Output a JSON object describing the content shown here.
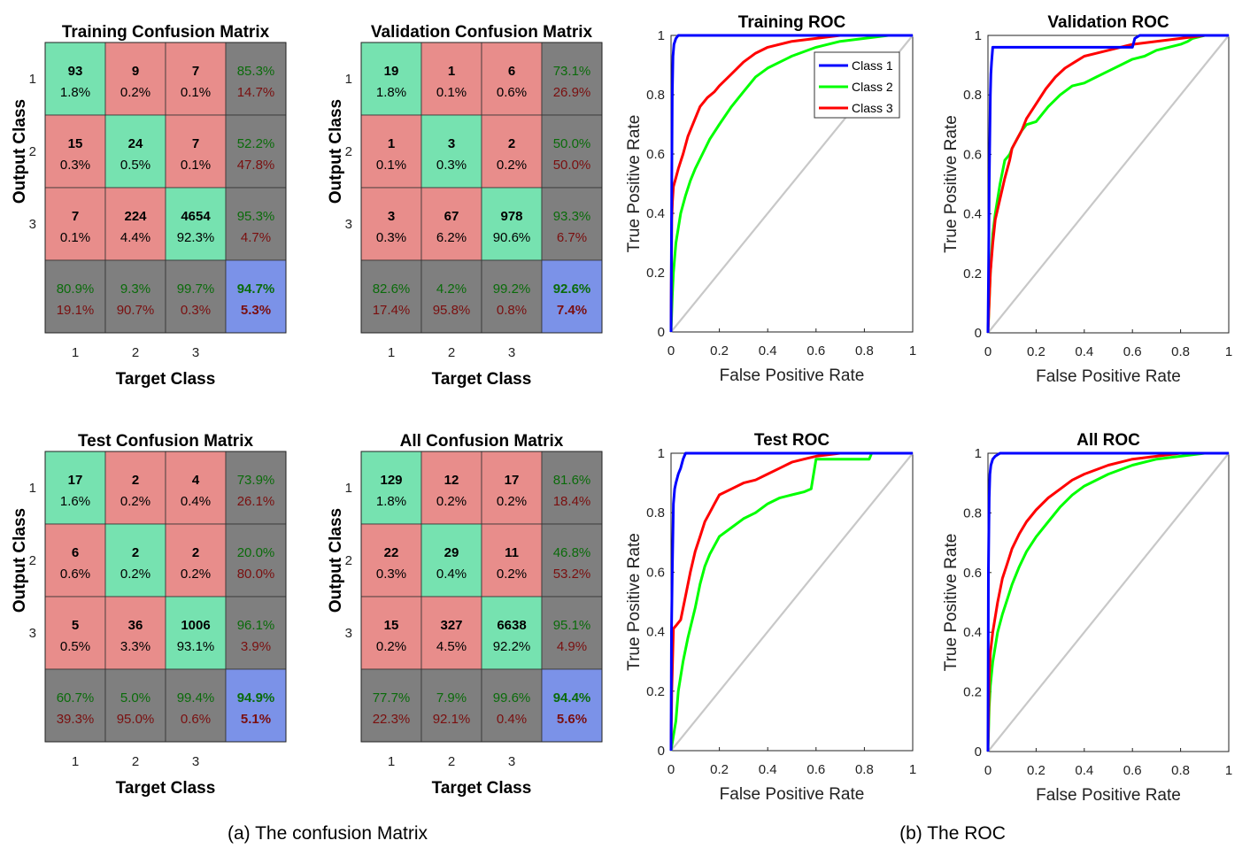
{
  "captions": {
    "left": "(a) The confusion Matrix",
    "right": "(b) The ROC"
  },
  "colors": {
    "correct": "#76e2b0",
    "wrong": "#e88d8b",
    "summary": "#7f7f7f",
    "overall": "#7b92e8",
    "green_text": "#0a6b0a",
    "red_text": "#7a0f0f",
    "class1": "#0000ff",
    "class2": "#00ff00",
    "class3": "#ff0000",
    "chance": "#c8c8c8"
  },
  "chart_data": [
    {
      "type": "table",
      "title": "Training Confusion Matrix",
      "xlabel": "Target Class",
      "ylabel": "Output Class",
      "class_labels": [
        "1",
        "2",
        "3"
      ],
      "counts": [
        [
          93,
          9,
          7
        ],
        [
          15,
          24,
          7
        ],
        [
          7,
          224,
          4654
        ]
      ],
      "cell_pct": [
        [
          "1.8%",
          "0.2%",
          "0.1%"
        ],
        [
          "0.3%",
          "0.5%",
          "0.1%"
        ],
        [
          "0.1%",
          "4.4%",
          "92.3%"
        ]
      ],
      "row_summary": [
        [
          "85.3%",
          "14.7%"
        ],
        [
          "52.2%",
          "47.8%"
        ],
        [
          "95.3%",
          "4.7%"
        ]
      ],
      "col_summary": [
        [
          "80.9%",
          "19.1%"
        ],
        [
          "9.3%",
          "90.7%"
        ],
        [
          "99.7%",
          "0.3%"
        ]
      ],
      "overall": [
        "94.7%",
        "5.3%"
      ]
    },
    {
      "type": "table",
      "title": "Validation Confusion Matrix",
      "xlabel": "Target Class",
      "ylabel": "Output Class",
      "class_labels": [
        "1",
        "2",
        "3"
      ],
      "counts": [
        [
          19,
          1,
          6
        ],
        [
          1,
          3,
          2
        ],
        [
          3,
          67,
          978
        ]
      ],
      "cell_pct": [
        [
          "1.8%",
          "0.1%",
          "0.6%"
        ],
        [
          "0.1%",
          "0.3%",
          "0.2%"
        ],
        [
          "0.3%",
          "6.2%",
          "90.6%"
        ]
      ],
      "row_summary": [
        [
          "73.1%",
          "26.9%"
        ],
        [
          "50.0%",
          "50.0%"
        ],
        [
          "93.3%",
          "6.7%"
        ]
      ],
      "col_summary": [
        [
          "82.6%",
          "17.4%"
        ],
        [
          "4.2%",
          "95.8%"
        ],
        [
          "99.2%",
          "0.8%"
        ]
      ],
      "overall": [
        "92.6%",
        "7.4%"
      ]
    },
    {
      "type": "table",
      "title": "Test Confusion Matrix",
      "xlabel": "Target Class",
      "ylabel": "Output Class",
      "class_labels": [
        "1",
        "2",
        "3"
      ],
      "counts": [
        [
          17,
          2,
          4
        ],
        [
          6,
          2,
          2
        ],
        [
          5,
          36,
          1006
        ]
      ],
      "cell_pct": [
        [
          "1.6%",
          "0.2%",
          "0.4%"
        ],
        [
          "0.6%",
          "0.2%",
          "0.2%"
        ],
        [
          "0.5%",
          "3.3%",
          "93.1%"
        ]
      ],
      "row_summary": [
        [
          "73.9%",
          "26.1%"
        ],
        [
          "20.0%",
          "80.0%"
        ],
        [
          "96.1%",
          "3.9%"
        ]
      ],
      "col_summary": [
        [
          "60.7%",
          "39.3%"
        ],
        [
          "5.0%",
          "95.0%"
        ],
        [
          "99.4%",
          "0.6%"
        ]
      ],
      "overall": [
        "94.9%",
        "5.1%"
      ]
    },
    {
      "type": "table",
      "title": "All Confusion Matrix",
      "xlabel": "Target Class",
      "ylabel": "Output Class",
      "class_labels": [
        "1",
        "2",
        "3"
      ],
      "counts": [
        [
          129,
          12,
          17
        ],
        [
          22,
          29,
          11
        ],
        [
          15,
          327,
          6638
        ]
      ],
      "cell_pct": [
        [
          "1.8%",
          "0.2%",
          "0.2%"
        ],
        [
          "0.3%",
          "0.4%",
          "0.2%"
        ],
        [
          "0.2%",
          "4.5%",
          "92.2%"
        ]
      ],
      "row_summary": [
        [
          "81.6%",
          "18.4%"
        ],
        [
          "46.8%",
          "53.2%"
        ],
        [
          "95.1%",
          "4.9%"
        ]
      ],
      "col_summary": [
        [
          "77.7%",
          "22.3%"
        ],
        [
          "7.9%",
          "92.1%"
        ],
        [
          "99.6%",
          "0.4%"
        ]
      ],
      "overall": [
        "94.4%",
        "5.6%"
      ]
    },
    {
      "type": "line",
      "title": "Training ROC",
      "xlabel": "False Positive Rate",
      "ylabel": "True Positive Rate",
      "xlim": [
        0,
        1
      ],
      "ylim": [
        0,
        1
      ],
      "ticks": [
        "0",
        "0.2",
        "0.4",
        "0.6",
        "0.8",
        "1"
      ],
      "legend": {
        "position": "top-right",
        "entries": [
          "Class 1",
          "Class 2",
          "Class 3"
        ]
      },
      "series": [
        {
          "name": "Class 1",
          "x": [
            0,
            0.003,
            0.005,
            0.008,
            0.012,
            0.02,
            0.03,
            0.05,
            1
          ],
          "y": [
            0,
            0.5,
            0.8,
            0.93,
            0.97,
            0.99,
            1,
            1,
            1
          ]
        },
        {
          "name": "Class 2",
          "x": [
            0,
            0.005,
            0.01,
            0.02,
            0.04,
            0.06,
            0.08,
            0.1,
            0.13,
            0.16,
            0.2,
            0.25,
            0.3,
            0.35,
            0.4,
            0.5,
            0.6,
            0.7,
            0.8,
            0.9,
            1
          ],
          "y": [
            0,
            0.12,
            0.2,
            0.3,
            0.4,
            0.46,
            0.51,
            0.55,
            0.6,
            0.65,
            0.7,
            0.76,
            0.81,
            0.86,
            0.89,
            0.93,
            0.96,
            0.98,
            0.99,
            1,
            1
          ]
        },
        {
          "name": "Class 3",
          "x": [
            0,
            0.003,
            0.006,
            0.01,
            0.02,
            0.03,
            0.05,
            0.07,
            0.1,
            0.12,
            0.15,
            0.18,
            0.2,
            0.25,
            0.3,
            0.35,
            0.4,
            0.5,
            0.6,
            0.7,
            0.8,
            0.9,
            1
          ],
          "y": [
            0,
            0.38,
            0.44,
            0.49,
            0.52,
            0.55,
            0.6,
            0.66,
            0.72,
            0.76,
            0.79,
            0.81,
            0.83,
            0.87,
            0.91,
            0.94,
            0.96,
            0.98,
            0.99,
            1,
            1,
            1,
            1
          ]
        },
        {
          "name": "chance",
          "x": [
            0,
            1
          ],
          "y": [
            0,
            1
          ]
        }
      ]
    },
    {
      "type": "line",
      "title": "Validation ROC",
      "xlabel": "False Positive Rate",
      "ylabel": "True Positive Rate",
      "xlim": [
        0,
        1
      ],
      "ylim": [
        0,
        1
      ],
      "ticks": [
        "0",
        "0.2",
        "0.4",
        "0.6",
        "0.8",
        "1"
      ],
      "series": [
        {
          "name": "Class 1",
          "x": [
            0,
            0.003,
            0.005,
            0.01,
            0.012,
            0.015,
            0.02,
            0.6,
            0.61,
            0.63,
            0.7,
            1
          ],
          "y": [
            0,
            0.25,
            0.5,
            0.8,
            0.87,
            0.91,
            0.96,
            0.96,
            0.99,
            1,
            1,
            1
          ]
        },
        {
          "name": "Class 2",
          "x": [
            0,
            0.01,
            0.02,
            0.03,
            0.05,
            0.07,
            0.09,
            0.1,
            0.12,
            0.14,
            0.16,
            0.2,
            0.25,
            0.3,
            0.35,
            0.4,
            0.45,
            0.5,
            0.55,
            0.6,
            0.65,
            0.7,
            0.75,
            0.8,
            0.83,
            0.85,
            0.9,
            1
          ],
          "y": [
            0,
            0.2,
            0.33,
            0.4,
            0.5,
            0.58,
            0.6,
            0.62,
            0.65,
            0.68,
            0.7,
            0.71,
            0.76,
            0.8,
            0.83,
            0.84,
            0.86,
            0.88,
            0.9,
            0.92,
            0.93,
            0.95,
            0.96,
            0.97,
            0.98,
            0.99,
            1,
            1
          ]
        },
        {
          "name": "Class 3",
          "x": [
            0,
            0.01,
            0.02,
            0.03,
            0.05,
            0.07,
            0.09,
            0.1,
            0.12,
            0.14,
            0.16,
            0.2,
            0.24,
            0.28,
            0.32,
            0.36,
            0.4,
            0.45,
            0.5,
            0.55,
            0.6,
            0.7,
            0.8,
            0.9,
            1
          ],
          "y": [
            0,
            0.2,
            0.3,
            0.38,
            0.45,
            0.52,
            0.58,
            0.62,
            0.65,
            0.68,
            0.72,
            0.77,
            0.82,
            0.86,
            0.89,
            0.91,
            0.93,
            0.94,
            0.95,
            0.96,
            0.97,
            0.98,
            0.99,
            1,
            1
          ]
        },
        {
          "name": "chance",
          "x": [
            0,
            1
          ],
          "y": [
            0,
            1
          ]
        }
      ]
    },
    {
      "type": "line",
      "title": "Test ROC",
      "xlabel": "False Positive Rate",
      "ylabel": "True Positive Rate",
      "xlim": [
        0,
        1
      ],
      "ylim": [
        0,
        1
      ],
      "ticks": [
        "0",
        "0.2",
        "0.4",
        "0.6",
        "0.8",
        "1"
      ],
      "series": [
        {
          "name": "Class 1",
          "x": [
            0,
            0.002,
            0.005,
            0.01,
            0.015,
            0.02,
            0.03,
            0.04,
            0.05,
            0.06,
            1
          ],
          "y": [
            0,
            0.4,
            0.6,
            0.83,
            0.88,
            0.9,
            0.93,
            0.95,
            0.98,
            1,
            1
          ]
        },
        {
          "name": "Class 2",
          "x": [
            0,
            0.01,
            0.02,
            0.03,
            0.05,
            0.07,
            0.1,
            0.12,
            0.14,
            0.16,
            0.2,
            0.25,
            0.3,
            0.35,
            0.4,
            0.45,
            0.5,
            0.55,
            0.58,
            0.6,
            0.7,
            0.8,
            0.82,
            0.83,
            1
          ],
          "y": [
            0,
            0.05,
            0.1,
            0.2,
            0.3,
            0.38,
            0.48,
            0.56,
            0.62,
            0.66,
            0.72,
            0.75,
            0.78,
            0.8,
            0.83,
            0.85,
            0.86,
            0.87,
            0.88,
            0.98,
            0.98,
            0.98,
            0.98,
            1,
            1
          ]
        },
        {
          "name": "Class 3",
          "x": [
            0,
            0.003,
            0.01,
            0.02,
            0.04,
            0.06,
            0.08,
            0.1,
            0.12,
            0.14,
            0.16,
            0.18,
            0.2,
            0.25,
            0.3,
            0.35,
            0.4,
            0.45,
            0.5,
            0.55,
            0.6,
            0.7,
            0.8,
            0.9,
            1
          ],
          "y": [
            0,
            0.2,
            0.41,
            0.42,
            0.44,
            0.52,
            0.6,
            0.67,
            0.72,
            0.77,
            0.8,
            0.83,
            0.86,
            0.88,
            0.9,
            0.91,
            0.93,
            0.95,
            0.97,
            0.98,
            0.99,
            1,
            1,
            1,
            1
          ]
        },
        {
          "name": "chance",
          "x": [
            0,
            1
          ],
          "y": [
            0,
            1
          ]
        }
      ]
    },
    {
      "type": "line",
      "title": "All ROC",
      "xlabel": "False Positive Rate",
      "ylabel": "True Positive Rate",
      "xlim": [
        0,
        1
      ],
      "ylim": [
        0,
        1
      ],
      "ticks": [
        "0",
        "0.2",
        "0.4",
        "0.6",
        "0.8",
        "1"
      ],
      "series": [
        {
          "name": "Class 1",
          "x": [
            0,
            0.002,
            0.005,
            0.008,
            0.012,
            0.02,
            0.03,
            0.05,
            1
          ],
          "y": [
            0,
            0.6,
            0.85,
            0.93,
            0.96,
            0.98,
            0.99,
            1,
            1
          ]
        },
        {
          "name": "Class 2",
          "x": [
            0,
            0.005,
            0.01,
            0.02,
            0.04,
            0.06,
            0.08,
            0.1,
            0.13,
            0.16,
            0.2,
            0.25,
            0.3,
            0.35,
            0.4,
            0.5,
            0.6,
            0.7,
            0.8,
            0.9,
            1
          ],
          "y": [
            0,
            0.15,
            0.22,
            0.3,
            0.4,
            0.46,
            0.51,
            0.56,
            0.62,
            0.67,
            0.72,
            0.77,
            0.82,
            0.86,
            0.89,
            0.93,
            0.96,
            0.98,
            0.99,
            1,
            1
          ]
        },
        {
          "name": "Class 3",
          "x": [
            0,
            0.005,
            0.01,
            0.02,
            0.04,
            0.06,
            0.08,
            0.1,
            0.13,
            0.16,
            0.2,
            0.25,
            0.3,
            0.35,
            0.4,
            0.5,
            0.6,
            0.7,
            0.8,
            0.9,
            1
          ],
          "y": [
            0,
            0.25,
            0.33,
            0.4,
            0.5,
            0.58,
            0.63,
            0.68,
            0.73,
            0.77,
            0.81,
            0.85,
            0.88,
            0.91,
            0.93,
            0.96,
            0.98,
            0.99,
            1,
            1,
            1
          ]
        },
        {
          "name": "chance",
          "x": [
            0,
            1
          ],
          "y": [
            0,
            1
          ]
        }
      ]
    }
  ]
}
